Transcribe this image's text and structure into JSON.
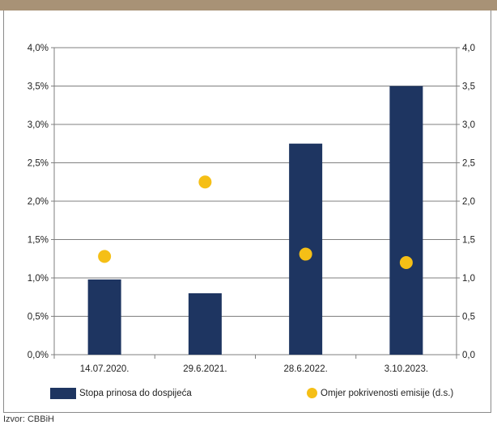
{
  "colors": {
    "header_band": "#a89276",
    "bar": "#1e3561",
    "dot": "#f5bf16",
    "grid": "#7f7f7f"
  },
  "chart_data": {
    "type": "bar",
    "categories": [
      "14.07.2020.",
      "29.6.2021.",
      "28.6.2022.",
      "3.10.2023."
    ],
    "series": [
      {
        "name": "Stopa prinosa do dospijeća",
        "type": "bar",
        "axis": "left",
        "values": [
          0.98,
          0.8,
          2.75,
          3.5
        ]
      },
      {
        "name": "Omjer pokrivenosti emisije (d.s.)",
        "type": "scatter",
        "axis": "right",
        "values": [
          1.28,
          2.25,
          1.31,
          1.2
        ]
      }
    ],
    "ylim": [
      0,
      4
    ],
    "y2lim": [
      0,
      4
    ],
    "yticks": [
      "0,0%",
      "0,5%",
      "1,0%",
      "1,5%",
      "2,0%",
      "2,5%",
      "3,0%",
      "3,5%",
      "4,0%"
    ],
    "y2ticks": [
      "0,0",
      "0,5",
      "1,0",
      "1,5",
      "2,0",
      "2,5",
      "3,0",
      "3,5",
      "4,0"
    ],
    "grid": true,
    "legend_position": "bottom"
  },
  "legend": {
    "bar_label": "Stopa prinosa do dospijeća",
    "dot_label": "Omjer pokrivenosti emisije (d.s.)"
  },
  "source": "Izvor: CBBiH"
}
